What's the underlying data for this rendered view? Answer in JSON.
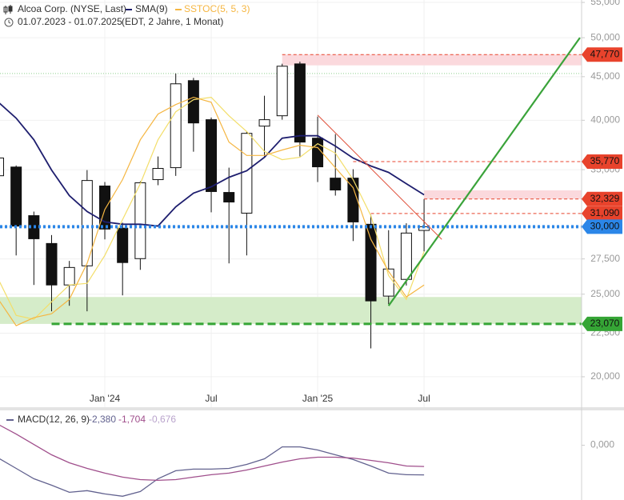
{
  "chart_data": [
    {
      "type": "candlestick",
      "title": "Alcoa Corp. (NYSE, Last)",
      "subtitle": "01.07.2023 - 01.07.2025",
      "note": "(EDT, 2 Jahre, 1 Monat)",
      "log_scale": true,
      "grid": true,
      "categories": [
        null,
        null,
        null,
        null,
        null,
        null,
        "Jan '24",
        null,
        null,
        null,
        null,
        null,
        "Jul",
        null,
        null,
        null,
        null,
        null,
        "Jan '25",
        null,
        null,
        null,
        null,
        null,
        "Jul"
      ],
      "candles": {
        "open": [
          34430,
          35250,
          30910,
          28670,
          25630,
          26990,
          33490,
          29880,
          27520,
          34070,
          35190,
          44520,
          40060,
          32910,
          31120,
          39370,
          40490,
          46580,
          38110,
          34210,
          34210,
          30200,
          24870,
          26020,
          29700
        ],
        "high": [
          36800,
          35400,
          31250,
          29330,
          27350,
          34960,
          33850,
          30330,
          33920,
          36270,
          45390,
          44850,
          40300,
          35190,
          38800,
          42740,
          46600,
          46870,
          40400,
          38530,
          35040,
          30990,
          29720,
          30280,
          32329
        ],
        "low": [
          33800,
          27760,
          25630,
          23870,
          24230,
          23870,
          28990,
          24920,
          26700,
          33560,
          34420,
          36740,
          31190,
          27170,
          27760,
          36270,
          40060,
          36270,
          33850,
          32630,
          28860,
          21590,
          24340,
          25590,
          28060
        ],
        "close": [
          36120,
          30050,
          29040,
          25630,
          26870,
          33990,
          29810,
          27230,
          33780,
          35120,
          44140,
          39710,
          32990,
          32070,
          38610,
          40060,
          46290,
          37710,
          35270,
          33130,
          30390,
          24550,
          26760,
          29490,
          30000
        ]
      },
      "series": [
        {
          "name": "SMA(9)",
          "color": "#1e1e6e",
          "values": [
            42000,
            40230,
            37950,
            34960,
            32630,
            31260,
            30390,
            30200,
            30200,
            30060,
            31660,
            32850,
            33420,
            34290,
            34890,
            36190,
            38110,
            38360,
            38360,
            37300,
            36110,
            35350,
            34740,
            33700,
            32700
          ]
        },
        {
          "name": "SSTOC(5, 5, 3)",
          "color": "#f5b642",
          "signal_color": "#f3de6a",
          "values": [
            24650,
            22960,
            23460,
            23710,
            24650,
            27170,
            31420,
            34070,
            37950,
            40670,
            41730,
            42560,
            42000,
            37710,
            36370,
            36370,
            36910,
            37390,
            37150,
            35190,
            33340,
            28990,
            26590,
            24810,
            25630
          ],
          "signal": [
            26020,
            23610,
            23360,
            24490,
            25630,
            25740,
            27760,
            30580,
            33700,
            37950,
            40930,
            42290,
            42560,
            40490,
            38800,
            36760,
            35960,
            36190,
            37550,
            36600,
            34070,
            30910,
            26300,
            24650,
            28060
          ]
        }
      ],
      "ylim": [
        18420,
        55360
      ],
      "yticks": [
        {
          "value": 20000,
          "label": "20,000"
        },
        {
          "value": 22500,
          "label": "22,500"
        },
        {
          "value": 25000,
          "label": "25,000"
        },
        {
          "value": 27500,
          "label": "27,500"
        },
        {
          "value": 30000,
          "label": "30,000"
        },
        {
          "value": 35000,
          "label": "35,000"
        },
        {
          "value": 40000,
          "label": "40,000"
        },
        {
          "value": 45000,
          "label": "45,000"
        },
        {
          "value": 50000,
          "label": "50,000"
        },
        {
          "value": 55000,
          "label": "55,000"
        }
      ],
      "levels": [
        {
          "value": 47770,
          "label": "47,770",
          "color": "#e8432c",
          "start": 16,
          "zone": 46400,
          "zone_color": "#fbd9dd"
        },
        {
          "value": 35770,
          "label": "35,770",
          "color": "#e8432c",
          "start": 20
        },
        {
          "value": 32329,
          "label": "32,329",
          "color": "#e8432c",
          "start": 24,
          "zone": 33100,
          "zone_color": "#fbd9dd"
        },
        {
          "value": 31090,
          "label": "31,090",
          "color": "#e8432c",
          "start": 21
        },
        {
          "value": 30000,
          "label": "30,000",
          "color": "#2b86e8",
          "start": 0
        },
        {
          "value": 23070,
          "label": "23,070",
          "color": "#35a535",
          "start": 3,
          "zone": 24810,
          "zone_color": "#d5ecc9"
        }
      ],
      "guides": [
        {
          "value": 45390,
          "color": "#8fd08f"
        }
      ],
      "trendlines": [
        {
          "color": "#3aa33a",
          "points": [
            {
              "x": 22,
              "y": 24230
            },
            {
              "x": 32.79,
              "y": 50000
            }
          ]
        },
        {
          "color": "#e0503a",
          "points": [
            {
              "x": 18,
              "y": 40560
            },
            {
              "x": 25,
              "y": 28990
            }
          ]
        }
      ]
    },
    {
      "type": "line",
      "title": "MACD(12, 26, 9)",
      "series": [
        {
          "color": "#62628f",
          "last_label": "-2,380",
          "values": [
            -1.03,
            -1.86,
            -2.69,
            -3.21,
            -3.78,
            -3.65,
            -3.91,
            -4.1,
            -3.72,
            -2.69,
            -2.05,
            -1.92,
            -1.92,
            -1.86,
            -1.54,
            -1.09,
            -0.13,
            -0.13,
            -0.38,
            -0.77,
            -1.15,
            -1.67,
            -2.24,
            -2.37,
            -2.38
          ]
        },
        {
          "color": "#a04f8c",
          "last_label": "-1,704",
          "values": [
            1.67,
            0.9,
            0.06,
            -0.77,
            -1.41,
            -1.86,
            -2.24,
            -2.56,
            -2.76,
            -2.82,
            -2.76,
            -2.56,
            -2.37,
            -2.24,
            -1.99,
            -1.67,
            -1.35,
            -1.09,
            -0.96,
            -0.96,
            -1.03,
            -1.22,
            -1.41,
            -1.67,
            -1.704
          ]
        }
      ],
      "histogram_last_label": "-0,676",
      "histogram_color": "#b9a3cc",
      "ylim": [
        -4.4,
        2.8
      ],
      "yticks": [
        {
          "value": 0,
          "label": "0,000"
        }
      ]
    }
  ]
}
